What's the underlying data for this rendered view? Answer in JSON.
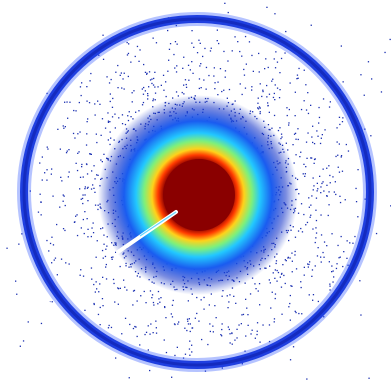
{
  "image": {
    "subject": "diffraction-pattern",
    "colors": {
      "background": "#ffffff",
      "ring": "#1f3fe0",
      "ring_dark": "#0d1ea8",
      "speckle": "#1a2fb0",
      "halo_cyan": "#33d6ff",
      "halo_yellow": "#f2e81c",
      "halo_orange": "#ff6a13",
      "core": "#8a0000",
      "beamstop": "#ffffff"
    }
  }
}
